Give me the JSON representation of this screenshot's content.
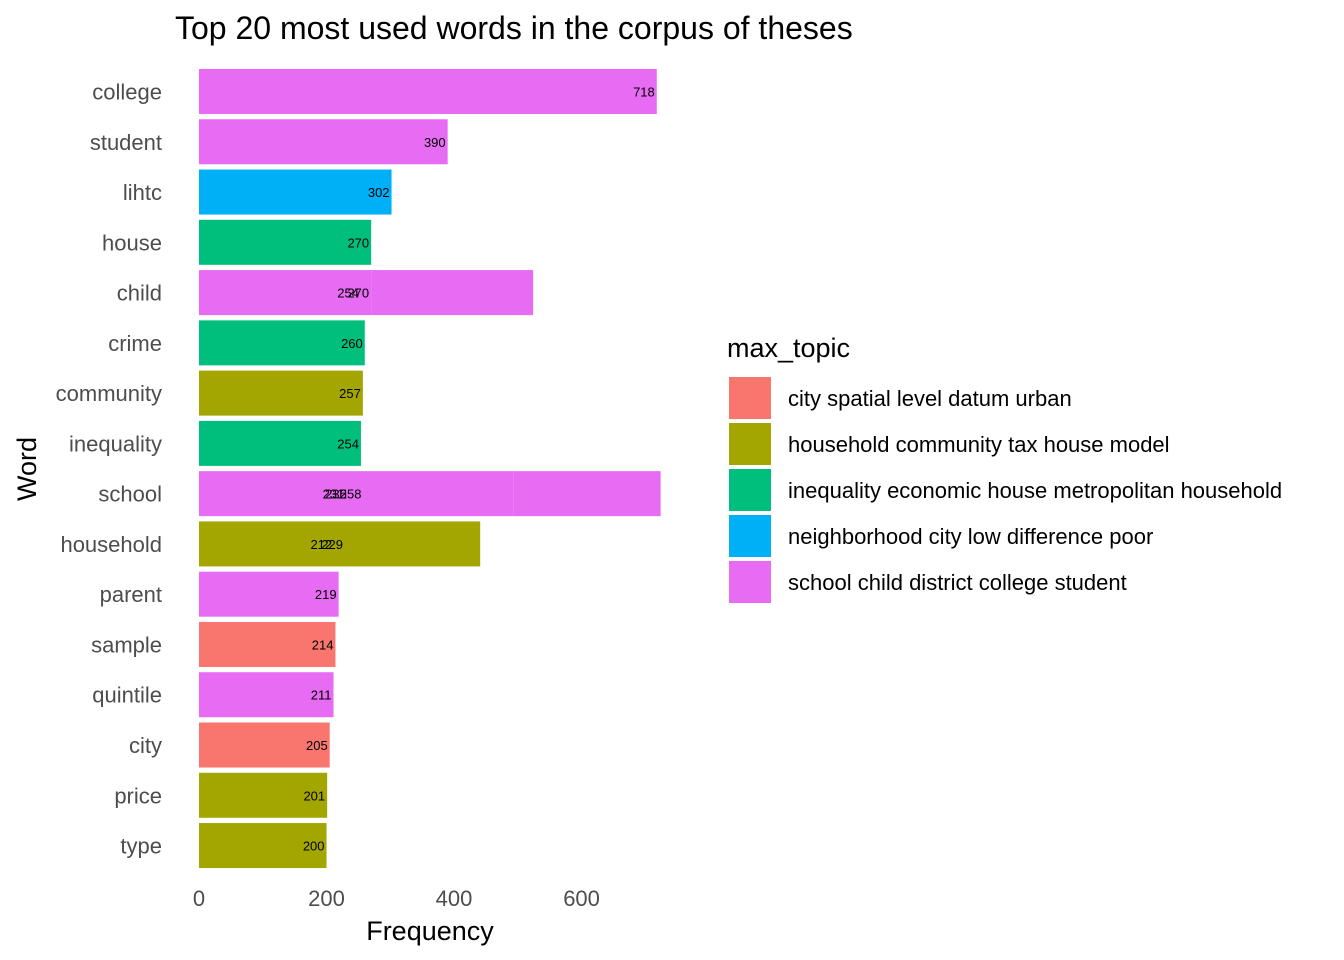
{
  "chart_data": {
    "type": "bar",
    "orientation": "horizontal",
    "stacked": true,
    "title": "Top 20 most used words in the corpus of theses",
    "xlabel": "Frequency",
    "ylabel": "Word",
    "xlim": [
      0,
      724
    ],
    "xticks": [
      0,
      200,
      400,
      600
    ],
    "grid": false,
    "legend": {
      "title": "max_topic",
      "position": "right",
      "entries": [
        {
          "name": "city spatial level datum urban",
          "color": "#F8766D"
        },
        {
          "name": "household community tax house model",
          "color": "#A3A500"
        },
        {
          "name": "inequality economic house metropolitan household",
          "color": "#00BF7D"
        },
        {
          "name": "neighborhood city low difference poor",
          "color": "#00B0F6"
        },
        {
          "name": "school child district college student",
          "color": "#E76BF3"
        }
      ]
    },
    "bars": [
      {
        "word": "college",
        "segments": [
          {
            "topic": 4,
            "value": 718
          }
        ]
      },
      {
        "word": "student",
        "segments": [
          {
            "topic": 4,
            "value": 390
          }
        ]
      },
      {
        "word": "lihtc",
        "segments": [
          {
            "topic": 3,
            "value": 302
          }
        ]
      },
      {
        "word": "house",
        "segments": [
          {
            "topic": 2,
            "value": 270
          }
        ]
      },
      {
        "word": "child",
        "segments": [
          {
            "topic": 4,
            "value": 270
          },
          {
            "topic": 4,
            "value": 254
          }
        ]
      },
      {
        "word": "crime",
        "segments": [
          {
            "topic": 2,
            "value": 260
          }
        ]
      },
      {
        "word": "community",
        "segments": [
          {
            "topic": 1,
            "value": 257
          }
        ]
      },
      {
        "word": "inequality",
        "segments": [
          {
            "topic": 2,
            "value": 254
          }
        ]
      },
      {
        "word": "school",
        "segments": [
          {
            "topic": 4,
            "value": 258
          },
          {
            "topic": 4,
            "value": 235
          },
          {
            "topic": 4,
            "value": 231
          }
        ]
      },
      {
        "word": "household",
        "segments": [
          {
            "topic": 1,
            "value": 229
          },
          {
            "topic": 1,
            "value": 212
          }
        ]
      },
      {
        "word": "parent",
        "segments": [
          {
            "topic": 4,
            "value": 219
          }
        ]
      },
      {
        "word": "sample",
        "segments": [
          {
            "topic": 0,
            "value": 214
          }
        ]
      },
      {
        "word": "quintile",
        "segments": [
          {
            "topic": 4,
            "value": 211
          }
        ]
      },
      {
        "word": "city",
        "segments": [
          {
            "topic": 0,
            "value": 205
          }
        ]
      },
      {
        "word": "price",
        "segments": [
          {
            "topic": 1,
            "value": 201
          }
        ]
      },
      {
        "word": "type",
        "segments": [
          {
            "topic": 1,
            "value": 200
          }
        ]
      }
    ]
  }
}
